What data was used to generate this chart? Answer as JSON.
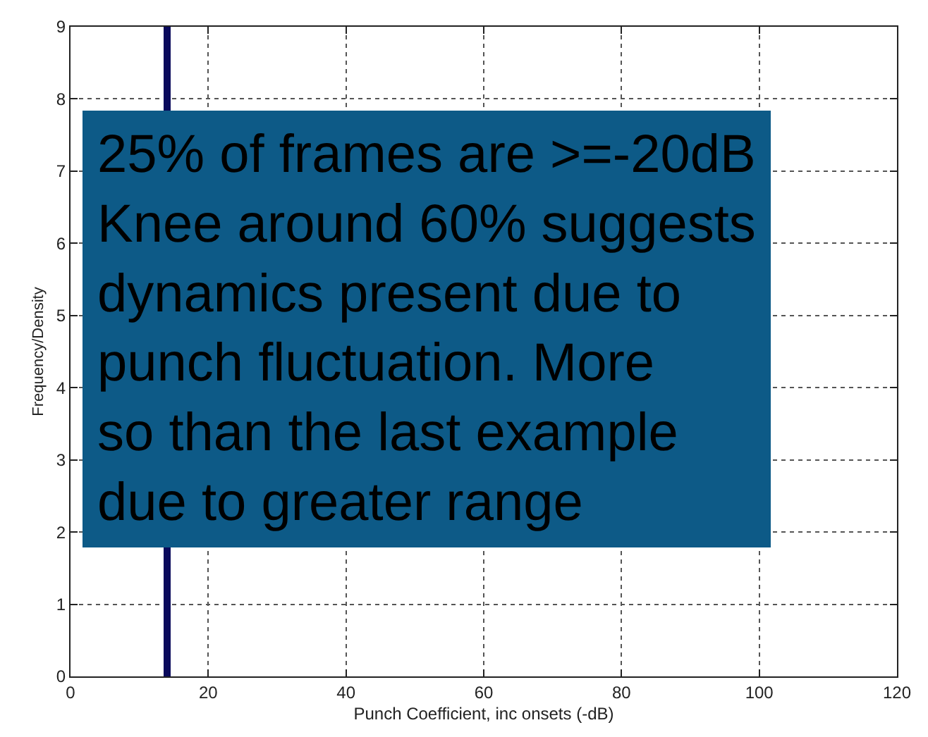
{
  "chart_data": {
    "type": "histogram",
    "xlabel": "Punch Coefficient, inc onsets (-dB)",
    "ylabel": "Frequency/Density",
    "bins": [
      10.5,
      11.5,
      12.5,
      13.5,
      14.5,
      15.5,
      16.5,
      17.5,
      18.5,
      19.5,
      20.5,
      21.5,
      22.5,
      23.5,
      24.5,
      25.5,
      26.5,
      27.5,
      28.5,
      29.5,
      30.5,
      31.5,
      32.5,
      33.5,
      34.5,
      35.5,
      36.5,
      37.5,
      38.5,
      39.5,
      40.5,
      41.5,
      42.5,
      43.5,
      44.5,
      45.5,
      46.5,
      47.5,
      48.5,
      49.5,
      50.5,
      51.5,
      52.5,
      53.5,
      54.5,
      55.5,
      56.5,
      57.5,
      58.5,
      59.5,
      60.5,
      61.5,
      62.5,
      63.5,
      64.5,
      65.5,
      66.5,
      67.5,
      68.5,
      69.5,
      70.5,
      71.5,
      72.5,
      73.5,
      74.5,
      75.5,
      76.5,
      77.5
    ],
    "values": [
      null,
      null,
      null,
      9,
      null,
      null,
      0,
      null,
      null,
      null,
      null,
      0,
      null,
      0,
      0,
      null,
      null,
      null,
      null,
      0,
      null,
      null,
      null,
      0,
      null,
      0,
      0,
      0,
      0,
      0,
      0,
      0,
      0,
      0,
      0,
      0,
      0,
      0,
      null,
      null,
      null,
      null,
      null,
      null,
      null,
      null,
      null,
      null,
      null,
      null,
      null,
      null,
      null,
      null,
      null,
      0,
      null,
      0,
      null,
      0,
      0,
      null,
      null,
      0,
      0,
      0,
      null
    ],
    "color": "#0a0a5c",
    "xlim": [
      0,
      120
    ],
    "xticks": [
      0,
      20,
      40,
      60,
      80,
      100,
      120
    ],
    "ylim": [
      0,
      9
    ],
    "yticks": [
      0,
      1,
      2,
      3,
      4,
      5,
      6,
      7,
      8,
      9
    ],
    "grid": true,
    "line_style": "dotted",
    "annotations": [
      "25% of frames are >=-20dB\nKnee around 60% suggests\ndynamics present due to\npunch fluctuation. More\nso than the last example\ndue to greater range"
    ]
  }
}
